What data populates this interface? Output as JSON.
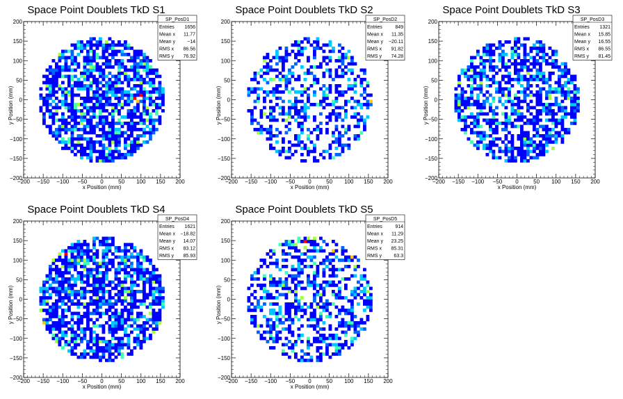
{
  "colors": {
    "palette": [
      "#0000ff",
      "#0064ff",
      "#00c8ff",
      "#40ffb0",
      "#a0ff40",
      "#ffc800",
      "#ff0000"
    ]
  },
  "chart_data": [
    {
      "type": "heatmap",
      "title": "Space Point Doublets TkD S1",
      "xlabel": "x Position (mm)",
      "ylabel": "y Position (mm)",
      "xlim": [
        -200,
        200
      ],
      "ylim": [
        -200,
        200
      ],
      "xticks": [
        "−200",
        "−150",
        "−100",
        "−50",
        "0",
        "50",
        "100",
        "150",
        "200"
      ],
      "yticks": [
        "−200",
        "−150",
        "−100",
        "−50",
        "0",
        "50",
        "100",
        "150",
        "200"
      ],
      "grid": false,
      "bin_size_mm": 8,
      "hist_name": "SP_PosD1",
      "stats": [
        [
          "Entries",
          "1656"
        ],
        [
          "Mean x",
          "11.77"
        ],
        [
          "Mean y",
          "−14"
        ],
        [
          "RMS x",
          "86.56"
        ],
        [
          "RMS y",
          "76.92"
        ]
      ],
      "occupancy": 0.68,
      "hot_cells": [
        [
          80,
          0,
          6
        ],
        [
          96,
          8,
          6
        ],
        [
          88,
          -8,
          5
        ],
        [
          -88,
          8,
          4
        ],
        [
          48,
          -16,
          4
        ],
        [
          112,
          -24,
          4
        ]
      ],
      "seed": 11
    },
    {
      "type": "heatmap",
      "title": "Space Point Doublets TkD S2",
      "xlabel": "x Position (mm)",
      "ylabel": "y Position (mm)",
      "xlim": [
        -200,
        200
      ],
      "ylim": [
        -200,
        200
      ],
      "xticks": [
        "−200",
        "−150",
        "−100",
        "−50",
        "0",
        "50",
        "100",
        "150",
        "200"
      ],
      "yticks": [
        "−200",
        "−150",
        "−100",
        "−50",
        "0",
        "50",
        "100",
        "150",
        "200"
      ],
      "grid": false,
      "bin_size_mm": 8,
      "hist_name": "SP_PosD2",
      "stats": [
        [
          "Entries",
          "849"
        ],
        [
          "Mean x",
          "11.35"
        ],
        [
          "Mean y",
          "−20.11"
        ],
        [
          "RMS x",
          "91.82"
        ],
        [
          "RMS y",
          "74.28"
        ]
      ],
      "occupancy": 0.42,
      "hot_cells": [
        [
          160,
          -24,
          6
        ],
        [
          152,
          -8,
          5
        ],
        [
          -16,
          24,
          4
        ],
        [
          120,
          -120,
          4
        ],
        [
          -120,
          -40,
          4
        ]
      ],
      "seed": 23
    },
    {
      "type": "heatmap",
      "title": "Space Point Doublets TkD S3",
      "xlabel": "x Position (mm)",
      "ylabel": "y Position (mm)",
      "xlim": [
        -200,
        200
      ],
      "ylim": [
        -200,
        200
      ],
      "xticks": [
        "−200",
        "−150",
        "−100",
        "−50",
        "0",
        "50",
        "100",
        "150",
        "200"
      ],
      "yticks": [
        "−200",
        "−150",
        "−100",
        "−50",
        "0",
        "50",
        "100",
        "150",
        "200"
      ],
      "grid": false,
      "bin_size_mm": 8,
      "hist_name": "SP_PosD3",
      "stats": [
        [
          "Entries",
          "1321"
        ],
        [
          "Mean x",
          "15.85"
        ],
        [
          "Mean y",
          "16.55"
        ],
        [
          "RMS x",
          "86.55"
        ],
        [
          "RMS y",
          "81.45"
        ]
      ],
      "occupancy": 0.6,
      "hot_cells": [
        [
          -120,
          72,
          4
        ],
        [
          -128,
          -24,
          4
        ]
      ],
      "seed": 37
    },
    {
      "type": "heatmap",
      "title": "Space Point Doublets TkD S4",
      "xlabel": "x Position (mm)",
      "ylabel": "y Position (mm)",
      "xlim": [
        -200,
        200
      ],
      "ylim": [
        -200,
        200
      ],
      "xticks": [
        "−200",
        "−150",
        "−100",
        "−50",
        "0",
        "50",
        "100",
        "150",
        "200"
      ],
      "yticks": [
        "−200",
        "−150",
        "−100",
        "−50",
        "0",
        "50",
        "100",
        "150",
        "200"
      ],
      "grid": false,
      "bin_size_mm": 8,
      "hist_name": "SP_PosD4",
      "stats": [
        [
          "Entries",
          "1621"
        ],
        [
          "Mean x",
          "−18.82"
        ],
        [
          "Mean y",
          "14.07"
        ],
        [
          "RMS x",
          "83.12"
        ],
        [
          "RMS y",
          "85.93"
        ]
      ],
      "occupancy": 0.7,
      "hot_cells": [
        [
          -96,
          112,
          6
        ],
        [
          -152,
          -64,
          5
        ],
        [
          -80,
          96,
          4
        ],
        [
          -120,
          -112,
          4
        ],
        [
          128,
          -88,
          4
        ]
      ],
      "seed": 41
    },
    {
      "type": "heatmap",
      "title": "Space Point Doublets TkD S5",
      "xlabel": "x Position (mm)",
      "ylabel": "y Position (mm)",
      "xlim": [
        -200,
        200
      ],
      "ylim": [
        -200,
        200
      ],
      "xticks": [
        "−200",
        "−150",
        "−100",
        "−50",
        "0",
        "50",
        "100",
        "150",
        "200"
      ],
      "yticks": [
        "−200",
        "−150",
        "−100",
        "−50",
        "0",
        "50",
        "100",
        "150",
        "200"
      ],
      "grid": false,
      "bin_size_mm": 8,
      "hist_name": "SP_PosD5",
      "stats": [
        [
          "Entries",
          "914"
        ],
        [
          "Mean x",
          "11.29"
        ],
        [
          "Mean y",
          "23.25"
        ],
        [
          "RMS x",
          "85.31"
        ],
        [
          "RMS y",
          "63.3"
        ]
      ],
      "occupancy": 0.45,
      "hot_cells": [
        [
          -16,
          144,
          6
        ],
        [
          56,
          120,
          5
        ],
        [
          104,
          104,
          5
        ],
        [
          8,
          152,
          4
        ],
        [
          -40,
          136,
          4
        ]
      ],
      "seed": 53
    }
  ]
}
